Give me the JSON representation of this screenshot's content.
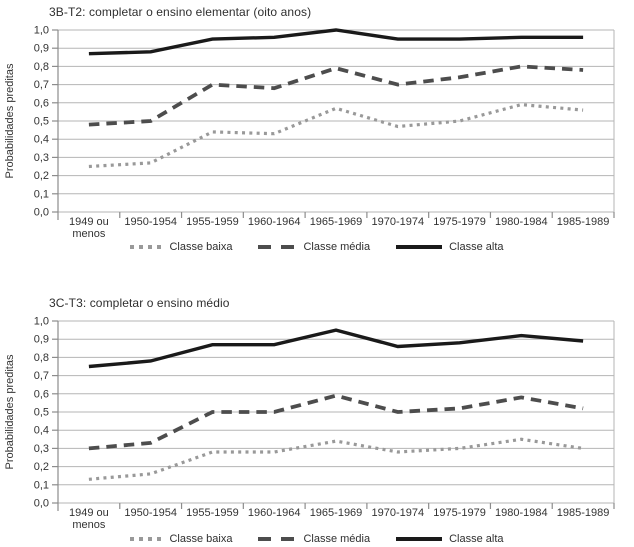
{
  "page": {
    "background": "#ffffff"
  },
  "colors": {
    "classe_baixa": "#999999",
    "classe_media": "#4d4d4d",
    "classe_alta": "#1a1a1a",
    "grid": "#b5b5b5",
    "axis": "#8c8c8c",
    "text": "#333333",
    "title": "#2f2f2f"
  },
  "chart_data": [
    {
      "type": "line",
      "title": "3B-T2: completar o ensino elementar (oito anos)",
      "xlabel": "",
      "ylabel": "Probabilidades preditas",
      "ylim": [
        0.0,
        1.0
      ],
      "ytick_step": 0.1,
      "ytick_labels": [
        "0,0",
        "0,1",
        "0,2",
        "0,3",
        "0,4",
        "0,5",
        "0,6",
        "0,7",
        "0,8",
        "0,9",
        "1,0"
      ],
      "grid": true,
      "legend_position": "bottom",
      "categories": [
        "1949 ou menos",
        "1950-1954",
        "1955-1959",
        "1960-1964",
        "1965-1969",
        "1970-1974",
        "1975-1979",
        "1980-1984",
        "1985-1989"
      ],
      "categories_display": [
        [
          "1949 ou",
          "menos"
        ],
        [
          "1950-1954"
        ],
        [
          "1955-1959"
        ],
        [
          "1960-1964"
        ],
        [
          "1965-1969"
        ],
        [
          "1970-1974"
        ],
        [
          "1975-1979"
        ],
        [
          "1980-1984"
        ],
        [
          "1985-1989"
        ]
      ],
      "series": [
        {
          "name": "Classe baixa",
          "style": "dotted",
          "color": "#999999",
          "values": [
            0.25,
            0.27,
            0.44,
            0.43,
            0.57,
            0.47,
            0.5,
            0.59,
            0.56
          ]
        },
        {
          "name": "Classe média",
          "style": "dashed",
          "color": "#4d4d4d",
          "values": [
            0.48,
            0.5,
            0.7,
            0.68,
            0.79,
            0.7,
            0.74,
            0.8,
            0.78
          ]
        },
        {
          "name": "Classe alta",
          "style": "solid",
          "color": "#1a1a1a",
          "values": [
            0.87,
            0.88,
            0.95,
            0.96,
            1.0,
            0.95,
            0.95,
            0.96,
            0.96
          ]
        }
      ]
    },
    {
      "type": "line",
      "title": "3C-T3: completar o ensino médio",
      "xlabel": "",
      "ylabel": "Probabilidades preditas",
      "ylim": [
        0.0,
        1.0
      ],
      "ytick_step": 0.1,
      "ytick_labels": [
        "0,0",
        "0,1",
        "0,2",
        "0,3",
        "0,4",
        "0,5",
        "0,6",
        "0,7",
        "0,8",
        "0,9",
        "1,0"
      ],
      "grid": true,
      "legend_position": "bottom",
      "categories": [
        "1949 ou menos",
        "1950-1954",
        "1955-1959",
        "1960-1964",
        "1965-1969",
        "1970-1974",
        "1975-1979",
        "1980-1984",
        "1985-1989"
      ],
      "categories_display": [
        [
          "1949 ou",
          "menos"
        ],
        [
          "1950-1954"
        ],
        [
          "1955-1959"
        ],
        [
          "1960-1964"
        ],
        [
          "1965-1969"
        ],
        [
          "1970-1974"
        ],
        [
          "1975-1979"
        ],
        [
          "1980-1984"
        ],
        [
          "1985-1989"
        ]
      ],
      "series": [
        {
          "name": "Classe baixa",
          "style": "dotted",
          "color": "#999999",
          "values": [
            0.13,
            0.16,
            0.28,
            0.28,
            0.34,
            0.28,
            0.3,
            0.35,
            0.3
          ]
        },
        {
          "name": "Classe média",
          "style": "dashed",
          "color": "#4d4d4d",
          "values": [
            0.3,
            0.33,
            0.5,
            0.5,
            0.59,
            0.5,
            0.52,
            0.58,
            0.52
          ]
        },
        {
          "name": "Classe alta",
          "style": "solid",
          "color": "#1a1a1a",
          "values": [
            0.75,
            0.78,
            0.87,
            0.87,
            0.95,
            0.86,
            0.88,
            0.92,
            0.89
          ]
        }
      ]
    }
  ]
}
